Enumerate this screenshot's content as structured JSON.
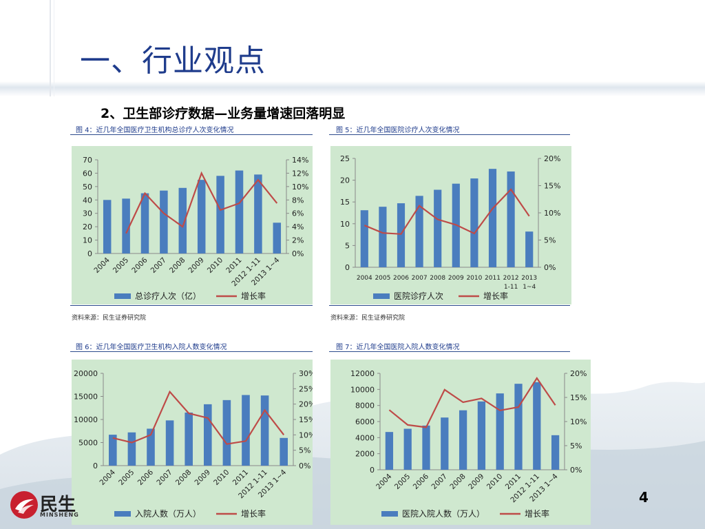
{
  "slide": {
    "title": "一、行业观点",
    "subtitle": "2、卫生部诊疗数据—业务量增速回落明显",
    "page_number": "4",
    "logo_text": "民生",
    "logo_sub": "MINSHENG"
  },
  "figures": [
    {
      "caption": "图 4：近几年全国医疗卫生机构总诊疗人次变化情况",
      "source": "资料来源：民生证券研究院"
    },
    {
      "caption": "图 5：近几年全国医院诊疗人次变化情况",
      "source": "资料来源：民生证券研究院"
    },
    {
      "caption": "图 6：近几年全国医疗卫生机构入院人数变化情况",
      "source": ""
    },
    {
      "caption": "图 7：近几年全国医院入院人数变化情况",
      "source": ""
    }
  ],
  "chart_data": [
    {
      "type": "bar",
      "title": "",
      "categories": [
        "2004",
        "2005",
        "2006",
        "2007",
        "2008",
        "2009",
        "2010",
        "2011",
        "2012 1-11",
        "2013 1~4"
      ],
      "label_rotate": true,
      "series": [
        {
          "name": "总诊疗人次（亿）",
          "kind": "bar",
          "axis": "left",
          "values": [
            40,
            41,
            45,
            47,
            49,
            55,
            58,
            62,
            59,
            23
          ]
        },
        {
          "name": "增长率",
          "kind": "line",
          "axis": "right",
          "values": [
            null,
            0.03,
            0.09,
            0.06,
            0.04,
            0.12,
            0.065,
            0.075,
            0.11,
            0.075
          ]
        }
      ],
      "left_axis": {
        "min": 0,
        "max": 70,
        "ticks": [
          "0",
          "10",
          "20",
          "30",
          "40",
          "50",
          "60",
          "70"
        ]
      },
      "right_axis": {
        "min": 0,
        "max": 0.14,
        "ticks": [
          "0%",
          "2%",
          "4%",
          "6%",
          "8%",
          "10%",
          "12%",
          "14%"
        ]
      },
      "colors": {
        "bar": "#4a7dbe",
        "line": "#be4b48",
        "background": "#cfe8cf"
      }
    },
    {
      "type": "bar",
      "title": "",
      "categories": [
        "2004",
        "2005",
        "2006",
        "2007",
        "2008",
        "2009",
        "2010",
        "2011",
        "2012\n1-11",
        "2013\n1~4"
      ],
      "label_rotate": false,
      "series": [
        {
          "name": "医院诊疗人次",
          "kind": "bar",
          "axis": "left",
          "values": [
            13.1,
            13.9,
            14.7,
            16.4,
            17.8,
            19.2,
            20.4,
            22.6,
            22.0,
            8.2
          ]
        },
        {
          "name": "增长率",
          "kind": "line",
          "axis": "right",
          "values": [
            0.077,
            0.063,
            0.061,
            0.113,
            0.088,
            0.078,
            0.062,
            0.108,
            0.143,
            0.094
          ]
        }
      ],
      "left_axis": {
        "min": 0,
        "max": 25,
        "ticks": [
          "0",
          "5",
          "10",
          "15",
          "20",
          "25"
        ]
      },
      "right_axis": {
        "min": 0,
        "max": 0.2,
        "ticks": [
          "0%",
          "5%",
          "10%",
          "15%",
          "20%"
        ]
      },
      "colors": {
        "bar": "#4a7dbe",
        "line": "#be4b48",
        "background": "#cfe8cf"
      }
    },
    {
      "type": "bar",
      "title": "",
      "categories": [
        "2004",
        "2005",
        "2006",
        "2007",
        "2008",
        "2009",
        "2010",
        "2011",
        "2012 1-11",
        "2013 1~4"
      ],
      "label_rotate": true,
      "series": [
        {
          "name": "入院人数（万人）",
          "kind": "bar",
          "axis": "left",
          "values": [
            6700,
            7200,
            8000,
            9800,
            11500,
            13300,
            14200,
            15300,
            15200,
            6000
          ]
        },
        {
          "name": "增长率",
          "kind": "line",
          "axis": "right",
          "values": [
            0.09,
            0.075,
            0.1,
            0.24,
            0.17,
            0.155,
            0.07,
            0.08,
            0.18,
            0.1
          ]
        }
      ],
      "left_axis": {
        "min": 0,
        "max": 20000,
        "ticks": [
          "0",
          "5000",
          "10000",
          "15000",
          "20000"
        ]
      },
      "right_axis": {
        "min": 0,
        "max": 0.3,
        "ticks": [
          "0%",
          "5%",
          "10%",
          "15%",
          "20%",
          "25%",
          "30%"
        ]
      },
      "colors": {
        "bar": "#4a7dbe",
        "line": "#be4b48",
        "background": "#cfe8cf"
      }
    },
    {
      "type": "bar",
      "title": "",
      "categories": [
        "2004",
        "2005",
        "2006",
        "2007",
        "2008",
        "2009",
        "2010",
        "2011",
        "2012 1-11",
        "2013 1~4"
      ],
      "label_rotate": true,
      "series": [
        {
          "name": "医院入院人数（万人）",
          "kind": "bar",
          "axis": "left",
          "values": [
            4700,
            5100,
            5500,
            6500,
            7400,
            8500,
            9500,
            10700,
            10900,
            4300
          ]
        },
        {
          "name": "增长率",
          "kind": "line",
          "axis": "right",
          "values": [
            0.124,
            0.093,
            0.088,
            0.166,
            0.14,
            0.148,
            0.123,
            0.13,
            0.19,
            0.134
          ]
        }
      ],
      "left_axis": {
        "min": 0,
        "max": 12000,
        "ticks": [
          "0",
          "2000",
          "4000",
          "6000",
          "8000",
          "10000",
          "12000"
        ]
      },
      "right_axis": {
        "min": 0,
        "max": 0.2,
        "ticks": [
          "0%",
          "5%",
          "10%",
          "15%",
          "20%"
        ]
      },
      "colors": {
        "bar": "#4a7dbe",
        "line": "#be4b48",
        "background": "#cfe8cf"
      }
    }
  ]
}
